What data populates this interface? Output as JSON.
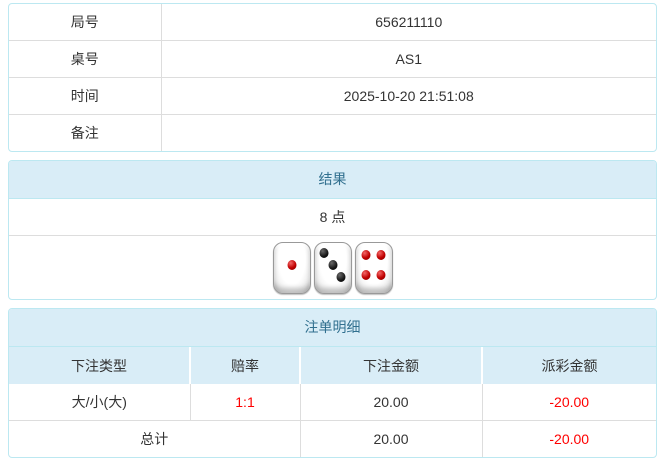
{
  "colors": {
    "panel_border": "#bce8f1",
    "heading_bg": "#d9edf7",
    "heading_text": "#31708f",
    "cell_border": "#dddddd",
    "body_text": "#333333",
    "negative_text": "#ff0000",
    "die_pip_red": "#c00000",
    "die_pip_black": "#151515"
  },
  "info_table": {
    "rows": [
      {
        "label": "局号",
        "value": "656211110"
      },
      {
        "label": "桌号",
        "value": "AS1"
      },
      {
        "label": "时间",
        "value": "2025-10-20 21:51:08"
      },
      {
        "label": "备注",
        "value": ""
      }
    ]
  },
  "result_panel": {
    "title": "结果",
    "points": "8 点",
    "dice": [
      {
        "value": 1,
        "color": "red"
      },
      {
        "value": 3,
        "color": "black"
      },
      {
        "value": 4,
        "color": "red"
      }
    ]
  },
  "bets_panel": {
    "title": "注单明细",
    "columns": [
      "下注类型",
      "赔率",
      "下注金额",
      "派彩金额"
    ],
    "rows": [
      {
        "type": "大/小(大)",
        "odds": "1:1",
        "bet_amount": "20.00",
        "payout": "-20.00"
      }
    ],
    "total": {
      "label": "总计",
      "bet_amount": "20.00",
      "payout": "-20.00"
    }
  }
}
